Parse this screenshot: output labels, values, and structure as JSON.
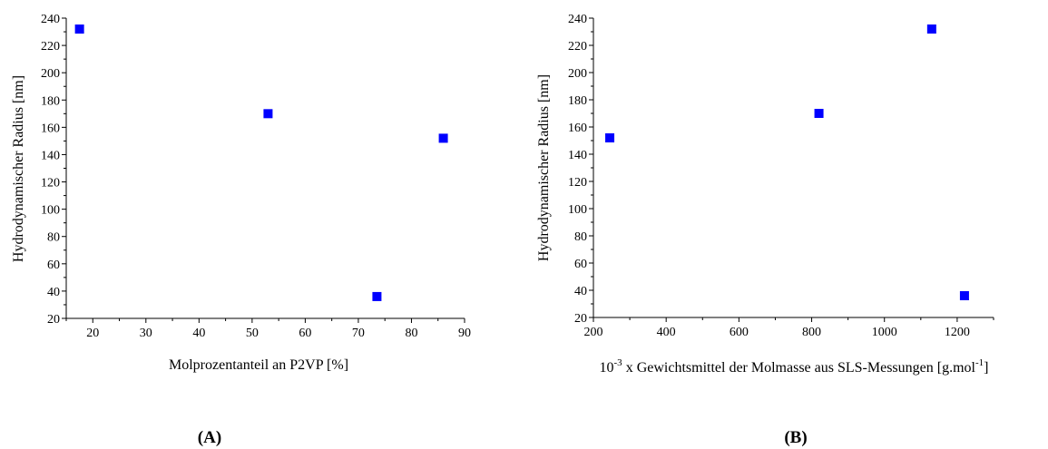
{
  "chart_data": [
    {
      "type": "scatter",
      "panel_label": "(A)",
      "xlabel": "Molprozentanteil an P2VP [%]",
      "ylabel": "Hydrodynamischer Radius [nm]",
      "xlim": [
        15,
        90
      ],
      "ylim": [
        20,
        240
      ],
      "xticks": [
        20,
        30,
        40,
        50,
        60,
        70,
        80,
        90
      ],
      "yticks": [
        20,
        40,
        60,
        80,
        100,
        120,
        140,
        160,
        180,
        200,
        220,
        240
      ],
      "marker_color": "#0000ff",
      "points": [
        {
          "x": 17.5,
          "y": 232
        },
        {
          "x": 53,
          "y": 170
        },
        {
          "x": 73.5,
          "y": 36
        },
        {
          "x": 86,
          "y": 152
        }
      ]
    },
    {
      "type": "scatter",
      "panel_label": "(B)",
      "xlabel_prefix": "10",
      "xlabel_exp": "-3",
      "xlabel_main": " x Gewichtsmittel der Molmasse aus SLS-Messungen [g.mol",
      "xlabel_exp2": "-1",
      "xlabel_suffix": "]",
      "ylabel": "Hydrodynamischer Radius [nm]",
      "xlim": [
        200,
        1300
      ],
      "ylim": [
        20,
        240
      ],
      "xticks": [
        200,
        400,
        600,
        800,
        1000,
        1200
      ],
      "yticks": [
        20,
        40,
        60,
        80,
        100,
        120,
        140,
        160,
        180,
        200,
        220,
        240
      ],
      "marker_color": "#0000ff",
      "points": [
        {
          "x": 245,
          "y": 152
        },
        {
          "x": 820,
          "y": 170
        },
        {
          "x": 1130,
          "y": 232
        },
        {
          "x": 1220,
          "y": 36
        }
      ]
    }
  ]
}
